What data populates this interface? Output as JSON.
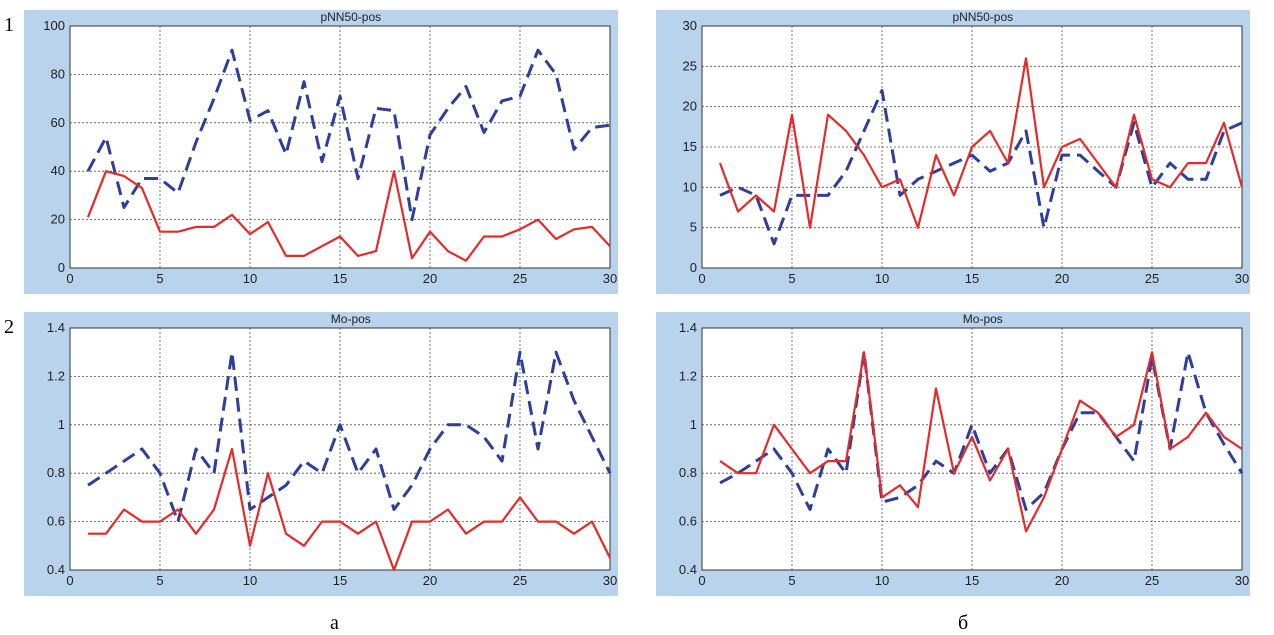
{
  "row_labels": [
    "1",
    "2"
  ],
  "col_labels": [
    "а",
    "б"
  ],
  "chart_data": [
    {
      "type": "line",
      "title": "pNN50-pos",
      "xlim": [
        0,
        30
      ],
      "ylim": [
        0,
        100
      ],
      "xticks": [
        0,
        5,
        10,
        15,
        20,
        25,
        30
      ],
      "yticks": [
        0,
        20,
        40,
        60,
        80,
        100
      ],
      "grid": true,
      "x": [
        1,
        2,
        3,
        4,
        5,
        6,
        7,
        8,
        9,
        10,
        11,
        12,
        13,
        14,
        15,
        16,
        17,
        18,
        19,
        20,
        21,
        22,
        23,
        24,
        25,
        26,
        27,
        28,
        29,
        30
      ],
      "series": [
        {
          "style": "dashed",
          "color": "#2e3e9c",
          "values": [
            40,
            54,
            25,
            37,
            37,
            31,
            52,
            70,
            90,
            61,
            65,
            47,
            77,
            44,
            71,
            37,
            66,
            65,
            20,
            55,
            66,
            75,
            56,
            69,
            71,
            90,
            80,
            49,
            58,
            59
          ]
        },
        {
          "style": "solid",
          "color": "#e52a2a",
          "values": [
            21,
            40,
            38,
            33,
            15,
            15,
            17,
            17,
            22,
            14,
            19,
            5,
            5,
            9,
            13,
            5,
            7,
            40,
            4,
            15,
            7,
            3,
            13,
            13,
            16,
            20,
            12,
            16,
            17,
            9
          ]
        }
      ]
    },
    {
      "type": "line",
      "title": "pNN50-pos",
      "xlim": [
        0,
        30
      ],
      "ylim": [
        0,
        30
      ],
      "xticks": [
        0,
        5,
        10,
        15,
        20,
        25,
        30
      ],
      "yticks": [
        0,
        5,
        10,
        15,
        20,
        25,
        30
      ],
      "grid": true,
      "x": [
        1,
        2,
        3,
        4,
        5,
        6,
        7,
        8,
        9,
        10,
        11,
        12,
        13,
        14,
        15,
        16,
        17,
        18,
        19,
        20,
        21,
        22,
        23,
        24,
        25,
        26,
        27,
        28,
        29,
        30
      ],
      "series": [
        {
          "style": "dashed",
          "color": "#2e3e9c",
          "values": [
            9,
            10,
            9,
            3,
            9,
            9,
            9,
            12,
            17,
            22,
            9,
            11,
            12,
            13,
            14,
            12,
            13,
            17,
            5,
            14,
            14,
            12,
            10,
            18,
            10,
            13,
            11,
            11,
            17,
            18
          ]
        },
        {
          "style": "solid",
          "color": "#e52a2a",
          "values": [
            13,
            7,
            9,
            7,
            19,
            5,
            19,
            17,
            14,
            10,
            11,
            5,
            14,
            9,
            15,
            17,
            13,
            26,
            10,
            15,
            16,
            13,
            10,
            19,
            11,
            10,
            13,
            13,
            18,
            10
          ]
        }
      ]
    },
    {
      "type": "line",
      "title": "Mo-pos",
      "xlim": [
        0,
        30
      ],
      "ylim": [
        0.4,
        1.4
      ],
      "xticks": [
        0,
        5,
        10,
        15,
        20,
        25,
        30
      ],
      "yticks": [
        0.4,
        0.6,
        0.8,
        1,
        1.2,
        1.4
      ],
      "ytick_labels": [
        "0.4",
        "0.6",
        "0.8",
        "1",
        "1.2",
        "1.4"
      ],
      "grid": true,
      "x": [
        1,
        2,
        3,
        4,
        5,
        6,
        7,
        8,
        9,
        10,
        11,
        12,
        13,
        14,
        15,
        16,
        17,
        18,
        19,
        20,
        21,
        22,
        23,
        24,
        25,
        26,
        27,
        28,
        29,
        30
      ],
      "series": [
        {
          "style": "dashed",
          "color": "#2e3e9c",
          "values": [
            0.75,
            0.8,
            0.85,
            0.9,
            0.8,
            0.6,
            0.9,
            0.8,
            1.3,
            0.65,
            0.7,
            0.75,
            0.85,
            0.8,
            1.0,
            0.8,
            0.9,
            0.65,
            0.75,
            0.9,
            1.0,
            1.0,
            0.95,
            0.85,
            1.3,
            0.9,
            1.3,
            1.1,
            0.95,
            0.8
          ]
        },
        {
          "style": "solid",
          "color": "#e52a2a",
          "values": [
            0.55,
            0.55,
            0.65,
            0.6,
            0.6,
            0.65,
            0.55,
            0.65,
            0.9,
            0.5,
            0.8,
            0.55,
            0.5,
            0.6,
            0.6,
            0.55,
            0.6,
            0.4,
            0.6,
            0.6,
            0.65,
            0.55,
            0.6,
            0.6,
            0.7,
            0.6,
            0.6,
            0.55,
            0.6,
            0.45
          ]
        }
      ]
    },
    {
      "type": "line",
      "title": "Mo-pos",
      "xlim": [
        0,
        30
      ],
      "ylim": [
        0.4,
        1.4
      ],
      "xticks": [
        0,
        5,
        10,
        15,
        20,
        25,
        30
      ],
      "yticks": [
        0.4,
        0.6,
        0.8,
        1,
        1.2,
        1.4
      ],
      "ytick_labels": [
        "0.4",
        "0.6",
        "0.8",
        "1",
        "1.2",
        "1.4"
      ],
      "grid": true,
      "x": [
        1,
        2,
        3,
        4,
        5,
        6,
        7,
        8,
        9,
        10,
        11,
        12,
        13,
        14,
        15,
        16,
        17,
        18,
        19,
        20,
        21,
        22,
        23,
        24,
        25,
        26,
        27,
        28,
        29,
        30
      ],
      "series": [
        {
          "style": "dashed",
          "color": "#2e3e9c",
          "values": [
            0.76,
            0.8,
            0.85,
            0.9,
            0.8,
            0.65,
            0.9,
            0.8,
            1.3,
            0.68,
            0.7,
            0.75,
            0.85,
            0.8,
            1.0,
            0.8,
            0.9,
            0.65,
            0.72,
            0.9,
            1.05,
            1.05,
            0.95,
            0.85,
            1.28,
            0.9,
            1.3,
            1.05,
            0.92,
            0.8
          ]
        },
        {
          "style": "solid",
          "color": "#e52a2a",
          "values": [
            0.85,
            0.8,
            0.8,
            1.0,
            0.9,
            0.8,
            0.85,
            0.85,
            1.3,
            0.7,
            0.75,
            0.66,
            1.15,
            0.8,
            0.95,
            0.77,
            0.9,
            0.56,
            0.7,
            0.9,
            1.1,
            1.05,
            0.95,
            1.0,
            1.3,
            0.9,
            0.95,
            1.05,
            0.95,
            0.9
          ]
        }
      ]
    }
  ]
}
